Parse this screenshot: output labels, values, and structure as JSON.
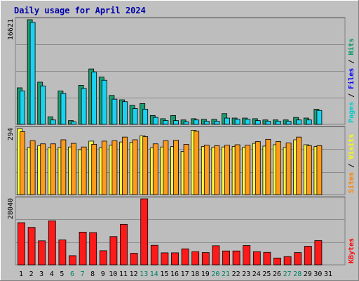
{
  "chart_data": {
    "title": "Daily usage for April 2024",
    "type": "bar",
    "x_labels": [
      "1",
      "2",
      "3",
      "4",
      "5",
      "6",
      "7",
      "8",
      "9",
      "10",
      "11",
      "12",
      "13",
      "14",
      "15",
      "16",
      "17",
      "18",
      "19",
      "20",
      "21",
      "22",
      "23",
      "24",
      "25",
      "26",
      "27",
      "28",
      "29",
      "30",
      "31"
    ],
    "weekend_days": [
      6,
      7,
      13,
      14,
      20,
      21,
      27,
      28
    ],
    "panels": [
      {
        "id": "hits-files-pages",
        "max_label": "16621",
        "ymax": 16621,
        "side_labels": [
          "Pages",
          "Files",
          "Hits"
        ],
        "side_colors": [
          "#00cccc",
          "#0000ff",
          "#009966"
        ],
        "series": [
          {
            "name": "Hits",
            "color": "#1a9d72",
            "values": [
              5800,
              16621,
              6700,
              1200,
              5300,
              600,
              6200,
              8800,
              7500,
              4600,
              3900,
              3000,
              3300,
              1400,
              900,
              1400,
              700,
              900,
              800,
              800,
              1700,
              1000,
              1000,
              900,
              700,
              700,
              700,
              1100,
              1000,
              2400
            ]
          },
          {
            "name": "Files",
            "color": "#1ad2f0",
            "values": [
              5300,
              16200,
              6100,
              700,
              4900,
              400,
              5700,
              8300,
              7000,
              4000,
              3600,
              2500,
              2400,
              1100,
              600,
              600,
              400,
              700,
              500,
              500,
              1000,
              800,
              800,
              600,
              500,
              500,
              500,
              700,
              700,
              2200
            ]
          }
        ]
      },
      {
        "id": "sites-visits",
        "max_label": "294",
        "ymax": 294,
        "side_labels": [
          "Sites",
          "Visits"
        ],
        "side_colors": [
          "#ff8000",
          "#ffff00"
        ],
        "series": [
          {
            "name": "Visits",
            "color": "#ffff44",
            "values": [
              294,
              210,
              218,
              208,
              210,
              212,
              200,
              238,
              208,
              220,
              234,
              232,
              262,
              208,
              212,
              214,
              192,
              286,
              214,
              210,
              212,
              214,
              210,
              228,
              216,
              222,
              210,
              244,
              222,
              214
            ]
          },
          {
            "name": "Sites",
            "color": "#ff9a1a",
            "values": [
              280,
              240,
              226,
              226,
              244,
              228,
              212,
              224,
              238,
              240,
              256,
              244,
              258,
              226,
              240,
              242,
              224,
              282,
              220,
              218,
              220,
              222,
              220,
              236,
              246,
              236,
              230,
              256,
              218,
              218
            ]
          }
        ]
      },
      {
        "id": "kbytes",
        "max_label": "28040",
        "ymax": 28040,
        "side_labels": [
          "KBytes"
        ],
        "side_colors": [
          "#ff0000"
        ],
        "series": [
          {
            "name": "KBytes",
            "color": "#ff1a1a",
            "values": [
              17900,
              15900,
              10200,
              18700,
              10600,
              3900,
              13900,
              13700,
              6000,
              12000,
              17200,
              4900,
              28040,
              8300,
              5100,
              5100,
              6800,
              5600,
              5200,
              8100,
              5900,
              5900,
              8200,
              5600,
              5300,
              2900,
              3500,
              5200,
              7900,
              10300
            ]
          }
        ]
      }
    ]
  }
}
